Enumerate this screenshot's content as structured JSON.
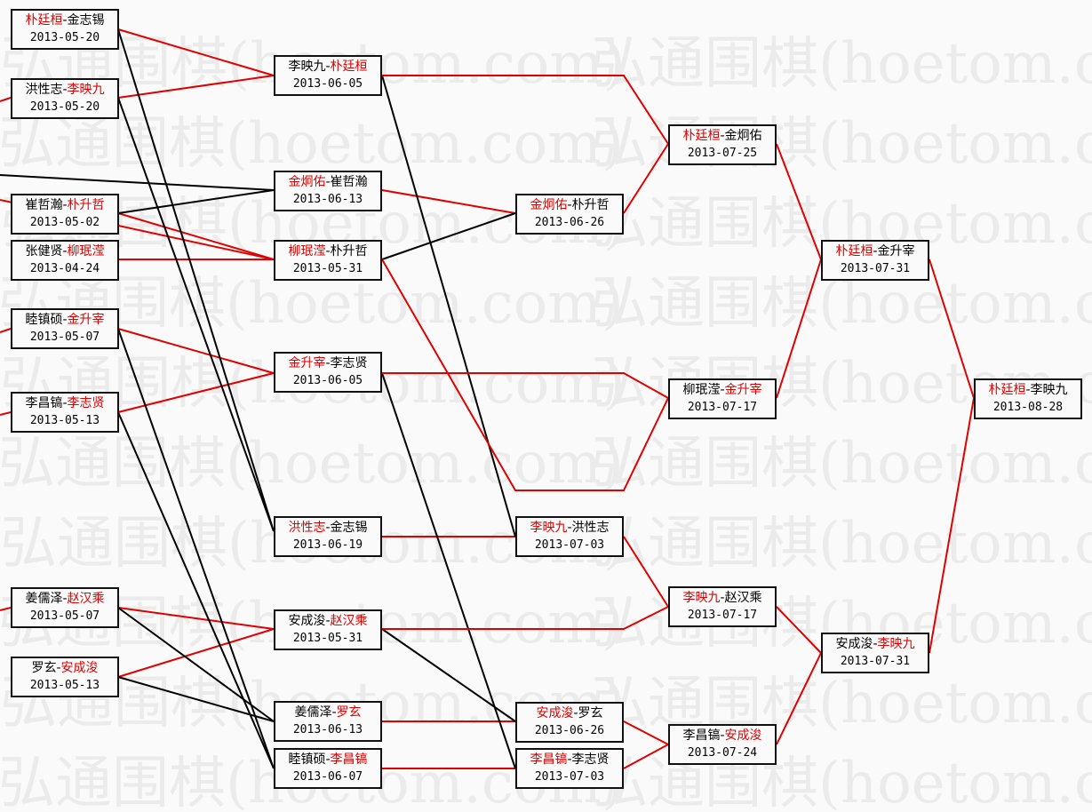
{
  "watermark": "弘通围棋(hoetom.com)",
  "colors": {
    "winner": "#e00000",
    "line_win": "#e00000",
    "line_loss": "#000000"
  },
  "rounds": [
    {
      "matches": [
        {
          "p1": "朴廷桓",
          "p2": "金志锡",
          "winner": 1,
          "date": "2013-05-20"
        },
        {
          "p1": "洪性志",
          "p2": "李映九",
          "winner": 2,
          "date": "2013-05-20"
        },
        {
          "p1": "崔哲瀚",
          "p2": "朴升哲",
          "winner": 2,
          "date": "2013-05-02"
        },
        {
          "p1": "张健贤",
          "p2": "柳珉滢",
          "winner": 2,
          "date": "2013-04-24"
        },
        {
          "p1": "睦镇硕",
          "p2": "金升宰",
          "winner": 2,
          "date": "2013-05-07"
        },
        {
          "p1": "李昌镐",
          "p2": "李志贤",
          "winner": 2,
          "date": "2013-05-13"
        },
        {
          "p1": "姜儒泽",
          "p2": "赵汉乘",
          "winner": 2,
          "date": "2013-05-07"
        },
        {
          "p1": "罗玄",
          "p2": "安成浚",
          "winner": 2,
          "date": "2013-05-13"
        }
      ]
    },
    {
      "matches": [
        {
          "p1": "李映九",
          "p2": "朴廷桓",
          "winner": 2,
          "date": "2013-06-05"
        },
        {
          "p1": "金炯佑",
          "p2": "崔哲瀚",
          "winner": 1,
          "date": "2013-06-13"
        },
        {
          "p1": "柳珉滢",
          "p2": "朴升哲",
          "winner": 1,
          "date": "2013-05-31"
        },
        {
          "p1": "金升宰",
          "p2": "李志贤",
          "winner": 1,
          "date": "2013-06-05"
        },
        {
          "p1": "洪性志",
          "p2": "金志锡",
          "winner": 1,
          "date": "2013-06-19"
        },
        {
          "p1": "安成浚",
          "p2": "赵汉乘",
          "winner": 2,
          "date": "2013-05-31"
        },
        {
          "p1": "姜儒泽",
          "p2": "罗玄",
          "winner": 2,
          "date": "2013-06-13"
        },
        {
          "p1": "睦镇硕",
          "p2": "李昌镐",
          "winner": 2,
          "date": "2013-06-07"
        }
      ]
    },
    {
      "matches": [
        {
          "p1": "金炯佑",
          "p2": "朴升哲",
          "winner": 1,
          "date": "2013-06-26"
        },
        {
          "p1": "李映九",
          "p2": "洪性志",
          "winner": 1,
          "date": "2013-07-03"
        },
        {
          "p1": "安成浚",
          "p2": "罗玄",
          "winner": 1,
          "date": "2013-06-26"
        },
        {
          "p1": "李昌镐",
          "p2": "李志贤",
          "winner": 1,
          "date": "2013-07-03"
        }
      ]
    },
    {
      "matches": [
        {
          "p1": "朴廷桓",
          "p2": "金炯佑",
          "winner": 1,
          "date": "2013-07-25"
        },
        {
          "p1": "柳珉滢",
          "p2": "金升宰",
          "winner": 2,
          "date": "2013-07-17"
        },
        {
          "p1": "李映九",
          "p2": "赵汉乘",
          "winner": 1,
          "date": "2013-07-17"
        },
        {
          "p1": "李昌镐",
          "p2": "安成浚",
          "winner": 2,
          "date": "2013-07-24"
        }
      ]
    },
    {
      "matches": [
        {
          "p1": "朴廷桓",
          "p2": "金升宰",
          "winner": 1,
          "date": "2013-07-31"
        },
        {
          "p1": "安成浚",
          "p2": "李映九",
          "winner": 2,
          "date": "2013-07-31"
        }
      ]
    },
    {
      "matches": [
        {
          "p1": "朴廷桓",
          "p2": "李映九",
          "winner": 1,
          "date": "2013-08-28"
        }
      ]
    }
  ]
}
